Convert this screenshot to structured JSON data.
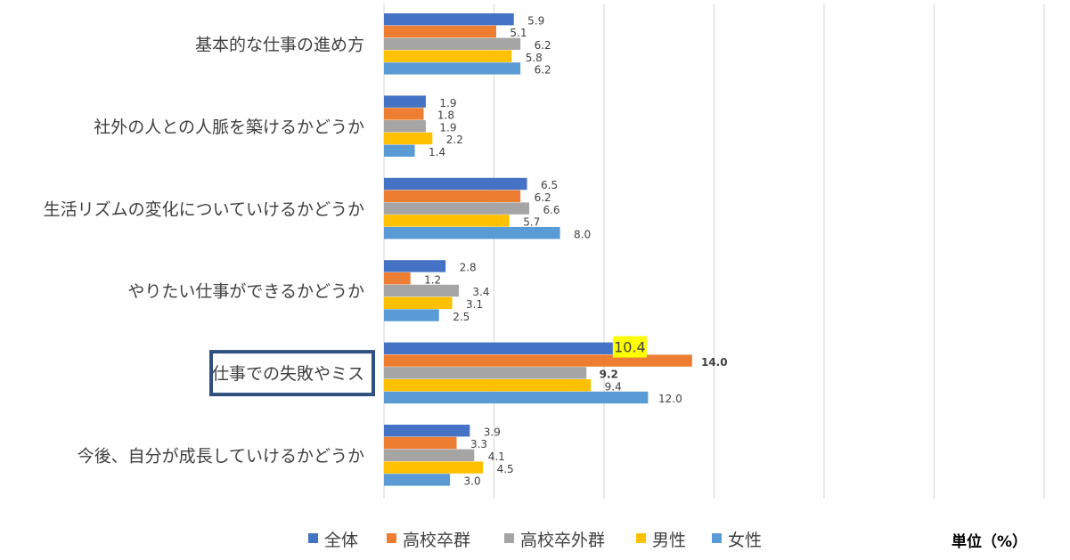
{
  "chart_data": {
    "type": "bar",
    "orientation": "horizontal",
    "categories": [
      "基本的な仕事の進め方",
      "社外の人との人脈を築けるかどうか",
      "生活リズムの変化についていけるかどうか",
      "やりたい仕事ができるかどうか",
      "仕事での失敗やミス",
      "今後、自分が成長していけるかどうか"
    ],
    "series": [
      {
        "name": "全体",
        "color": "#4472C4",
        "values": [
          5.9,
          1.9,
          6.5,
          2.8,
          10.4,
          3.9
        ]
      },
      {
        "name": "高校卒群",
        "color": "#ED7D31",
        "values": [
          5.1,
          1.8,
          6.2,
          1.2,
          14.0,
          3.3
        ]
      },
      {
        "name": "高校卒外群",
        "color": "#A5A5A5",
        "values": [
          6.2,
          1.9,
          6.6,
          3.4,
          9.2,
          4.1
        ]
      },
      {
        "name": "男性",
        "color": "#FFC000",
        "values": [
          5.8,
          2.2,
          5.7,
          3.1,
          9.4,
          4.5
        ]
      },
      {
        "name": "女性",
        "color": "#5B9BD5",
        "values": [
          6.2,
          1.4,
          8.0,
          2.5,
          12.0,
          3.0
        ]
      }
    ],
    "value_labels": [
      [
        "5.9",
        "5.1",
        "6.2",
        "5.8",
        "6.2"
      ],
      [
        "1.9",
        "1.8",
        "1.9",
        "2.2",
        "1.4"
      ],
      [
        "6.5",
        "6.2",
        "6.6",
        "5.7",
        "8.0"
      ],
      [
        "2.8",
        "1.2",
        "3.4",
        "3.1",
        "2.5"
      ],
      [
        "10.4",
        "14.0",
        "9.2",
        "9.4",
        "12.0"
      ],
      [
        "3.9",
        "3.3",
        "4.1",
        "4.5",
        "3.0"
      ]
    ],
    "highlighted_category": "仕事での失敗やミス",
    "highlighted_value": "10.4",
    "bold_values": [
      "14.0",
      "9.2"
    ],
    "highlight_color": "#FFFF00",
    "frame_color": "#2F4F7F",
    "xlim": [
      0,
      30
    ],
    "grid": true,
    "legend_position": "bottom",
    "unit_label": "単位（%）"
  }
}
